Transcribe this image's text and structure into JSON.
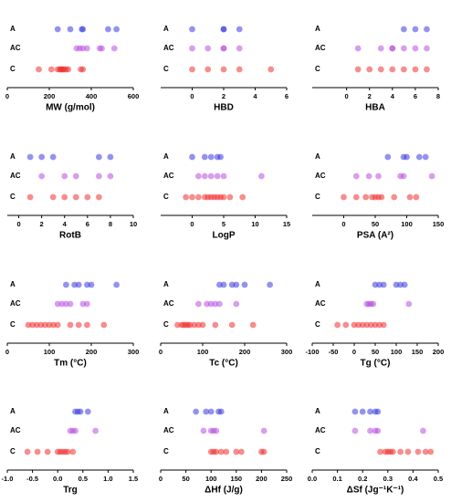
{
  "chart_data": [
    {
      "type": "strip",
      "x_label": "MW (g/mol)",
      "xlim": [
        0,
        600
      ],
      "xticks": [
        0,
        200,
        400,
        600
      ],
      "series": [
        {
          "name": "A",
          "color": "#3a3ae0",
          "values": [
            240,
            300,
            355,
            360,
            480,
            520
          ]
        },
        {
          "name": "AC",
          "color": "#b84ee0",
          "values": [
            330,
            345,
            360,
            380,
            440,
            450,
            510
          ]
        },
        {
          "name": "C",
          "color": "#f03030",
          "values": [
            150,
            210,
            240,
            250,
            255,
            260,
            265,
            270,
            280,
            290,
            350,
            360
          ]
        }
      ]
    },
    {
      "type": "strip",
      "x_label": "HBD",
      "xlim": [
        -2,
        6
      ],
      "xticks": [
        0,
        2,
        4,
        6
      ],
      "series": [
        {
          "name": "A",
          "color": "#3a3ae0",
          "values": [
            0,
            2,
            2,
            3
          ]
        },
        {
          "name": "AC",
          "color": "#b84ee0",
          "values": [
            0,
            1,
            2,
            2,
            3
          ]
        },
        {
          "name": "C",
          "color": "#f03030",
          "values": [
            0,
            1,
            2,
            3,
            5
          ]
        }
      ]
    },
    {
      "type": "strip",
      "x_label": "HBA",
      "xlim": [
        -3,
        8
      ],
      "xticks": [
        0,
        2,
        4,
        6,
        8
      ],
      "series": [
        {
          "name": "A",
          "color": "#3a3ae0",
          "values": [
            5,
            6,
            7
          ]
        },
        {
          "name": "AC",
          "color": "#b84ee0",
          "values": [
            1,
            3,
            4,
            4,
            5,
            6,
            7
          ]
        },
        {
          "name": "C",
          "color": "#f03030",
          "values": [
            1,
            2,
            3,
            4,
            5,
            6,
            7
          ]
        }
      ]
    },
    {
      "type": "strip",
      "x_label": "RotB",
      "xlim": [
        -1,
        10
      ],
      "xticks": [
        0,
        2,
        4,
        6,
        8,
        10
      ],
      "series": [
        {
          "name": "A",
          "color": "#3a3ae0",
          "values": [
            1,
            2,
            3,
            7,
            8
          ]
        },
        {
          "name": "AC",
          "color": "#b84ee0",
          "values": [
            2,
            4,
            5,
            7,
            8
          ]
        },
        {
          "name": "C",
          "color": "#f03030",
          "values": [
            1,
            3,
            4,
            5,
            6,
            7
          ]
        }
      ]
    },
    {
      "type": "strip",
      "x_label": "LogP",
      "xlim": [
        -5,
        15
      ],
      "xticks": [
        0,
        5,
        10,
        15
      ],
      "series": [
        {
          "name": "A",
          "color": "#3a3ae0",
          "values": [
            0,
            2,
            3,
            4,
            4.5
          ]
        },
        {
          "name": "AC",
          "color": "#b84ee0",
          "values": [
            1,
            2,
            3,
            4,
            5,
            11
          ]
        },
        {
          "name": "C",
          "color": "#f03030",
          "values": [
            -1,
            0,
            1,
            2,
            2.5,
            3,
            3.5,
            4,
            4.5,
            5,
            6,
            8
          ]
        }
      ]
    },
    {
      "type": "strip",
      "x_label": "PSA (A²)",
      "xlim": [
        -50,
        150
      ],
      "xticks": [
        0,
        50,
        100,
        150
      ],
      "series": [
        {
          "name": "A",
          "color": "#3a3ae0",
          "values": [
            70,
            95,
            100,
            120,
            130
          ]
        },
        {
          "name": "AC",
          "color": "#b84ee0",
          "values": [
            20,
            40,
            55,
            90,
            95,
            140
          ]
        },
        {
          "name": "C",
          "color": "#f03030",
          "values": [
            0,
            20,
            35,
            45,
            50,
            55,
            60,
            80,
            105,
            115
          ]
        }
      ]
    },
    {
      "type": "strip",
      "x_label": "Tm (°C)",
      "xlim": [
        0,
        300
      ],
      "xticks": [
        0,
        100,
        200,
        300
      ],
      "series": [
        {
          "name": "A",
          "color": "#3a3ae0",
          "values": [
            140,
            160,
            170,
            190,
            200,
            260
          ]
        },
        {
          "name": "AC",
          "color": "#b84ee0",
          "values": [
            120,
            130,
            140,
            150,
            180,
            190
          ]
        },
        {
          "name": "C",
          "color": "#f03030",
          "values": [
            50,
            60,
            70,
            80,
            90,
            100,
            110,
            120,
            150,
            170,
            190,
            230
          ]
        }
      ]
    },
    {
      "type": "strip",
      "x_label": "Tc (°C)",
      "xlim": [
        0,
        300
      ],
      "xticks": [
        0,
        100,
        200,
        300
      ],
      "series": [
        {
          "name": "A",
          "color": "#3a3ae0",
          "values": [
            140,
            150,
            170,
            180,
            200,
            260
          ]
        },
        {
          "name": "AC",
          "color": "#b84ee0",
          "values": [
            90,
            110,
            120,
            130,
            140,
            180
          ]
        },
        {
          "name": "C",
          "color": "#f03030",
          "values": [
            40,
            50,
            55,
            60,
            65,
            70,
            80,
            90,
            100,
            130,
            170,
            220
          ]
        }
      ]
    },
    {
      "type": "strip",
      "x_label": "Tg (°C)",
      "xlim": [
        -100,
        200
      ],
      "xticks": [
        -100,
        -50,
        0,
        50,
        100,
        150,
        200
      ],
      "series": [
        {
          "name": "A",
          "color": "#3a3ae0",
          "values": [
            50,
            60,
            70,
            100,
            110,
            120
          ]
        },
        {
          "name": "AC",
          "color": "#b84ee0",
          "values": [
            30,
            35,
            40,
            45,
            130
          ]
        },
        {
          "name": "C",
          "color": "#f03030",
          "values": [
            -40,
            -20,
            0,
            10,
            20,
            30,
            40,
            50,
            60,
            70
          ]
        }
      ]
    },
    {
      "type": "strip",
      "x_label": "Trg",
      "xlim": [
        -1,
        1.5
      ],
      "xticks": [
        {
          "value": -1,
          "label": "-1.0"
        },
        {
          "value": -0.5,
          "label": "-0.5"
        },
        {
          "value": 0,
          "label": "0.0"
        },
        {
          "value": 0.5,
          "label": "0.5"
        },
        {
          "value": 1,
          "label": "1.0"
        },
        {
          "value": 1.5,
          "label": "1.5"
        }
      ],
      "series": [
        {
          "name": "A",
          "color": "#3a3ae0",
          "values": [
            0.35,
            0.4,
            0.45,
            0.6
          ]
        },
        {
          "name": "AC",
          "color": "#b84ee0",
          "values": [
            0.25,
            0.3,
            0.35,
            0.75
          ]
        },
        {
          "name": "C",
          "color": "#f03030",
          "values": [
            -0.6,
            -0.4,
            -0.2,
            0,
            0.05,
            0.1,
            0.15,
            0.2,
            0.3
          ]
        }
      ]
    },
    {
      "type": "strip",
      "x_label": "ΔHf (J/g)",
      "xlim": [
        0,
        250
      ],
      "xticks": [
        0,
        50,
        100,
        150,
        200,
        250
      ],
      "series": [
        {
          "name": "A",
          "color": "#3a3ae0",
          "values": [
            70,
            90,
            100,
            115,
            120
          ]
        },
        {
          "name": "AC",
          "color": "#b84ee0",
          "values": [
            85,
            100,
            105,
            110,
            205
          ]
        },
        {
          "name": "C",
          "color": "#f03030",
          "values": [
            100,
            105,
            110,
            120,
            130,
            150,
            160,
            200,
            205
          ]
        }
      ]
    },
    {
      "type": "strip",
      "x_label": "ΔSf (Jg⁻¹K⁻¹)",
      "xlim": [
        0,
        0.5
      ],
      "xticks": [
        {
          "value": 0,
          "label": "0.0"
        },
        0.1,
        0.2,
        0.3,
        0.4,
        0.5
      ],
      "series": [
        {
          "name": "A",
          "color": "#3a3ae0",
          "values": [
            0.17,
            0.2,
            0.23,
            0.25,
            0.26
          ]
        },
        {
          "name": "AC",
          "color": "#b84ee0",
          "values": [
            0.17,
            0.23,
            0.25,
            0.26,
            0.44
          ]
        },
        {
          "name": "C",
          "color": "#f03030",
          "values": [
            0.27,
            0.29,
            0.3,
            0.31,
            0.32,
            0.35,
            0.38,
            0.42,
            0.45,
            0.47
          ]
        }
      ]
    }
  ]
}
